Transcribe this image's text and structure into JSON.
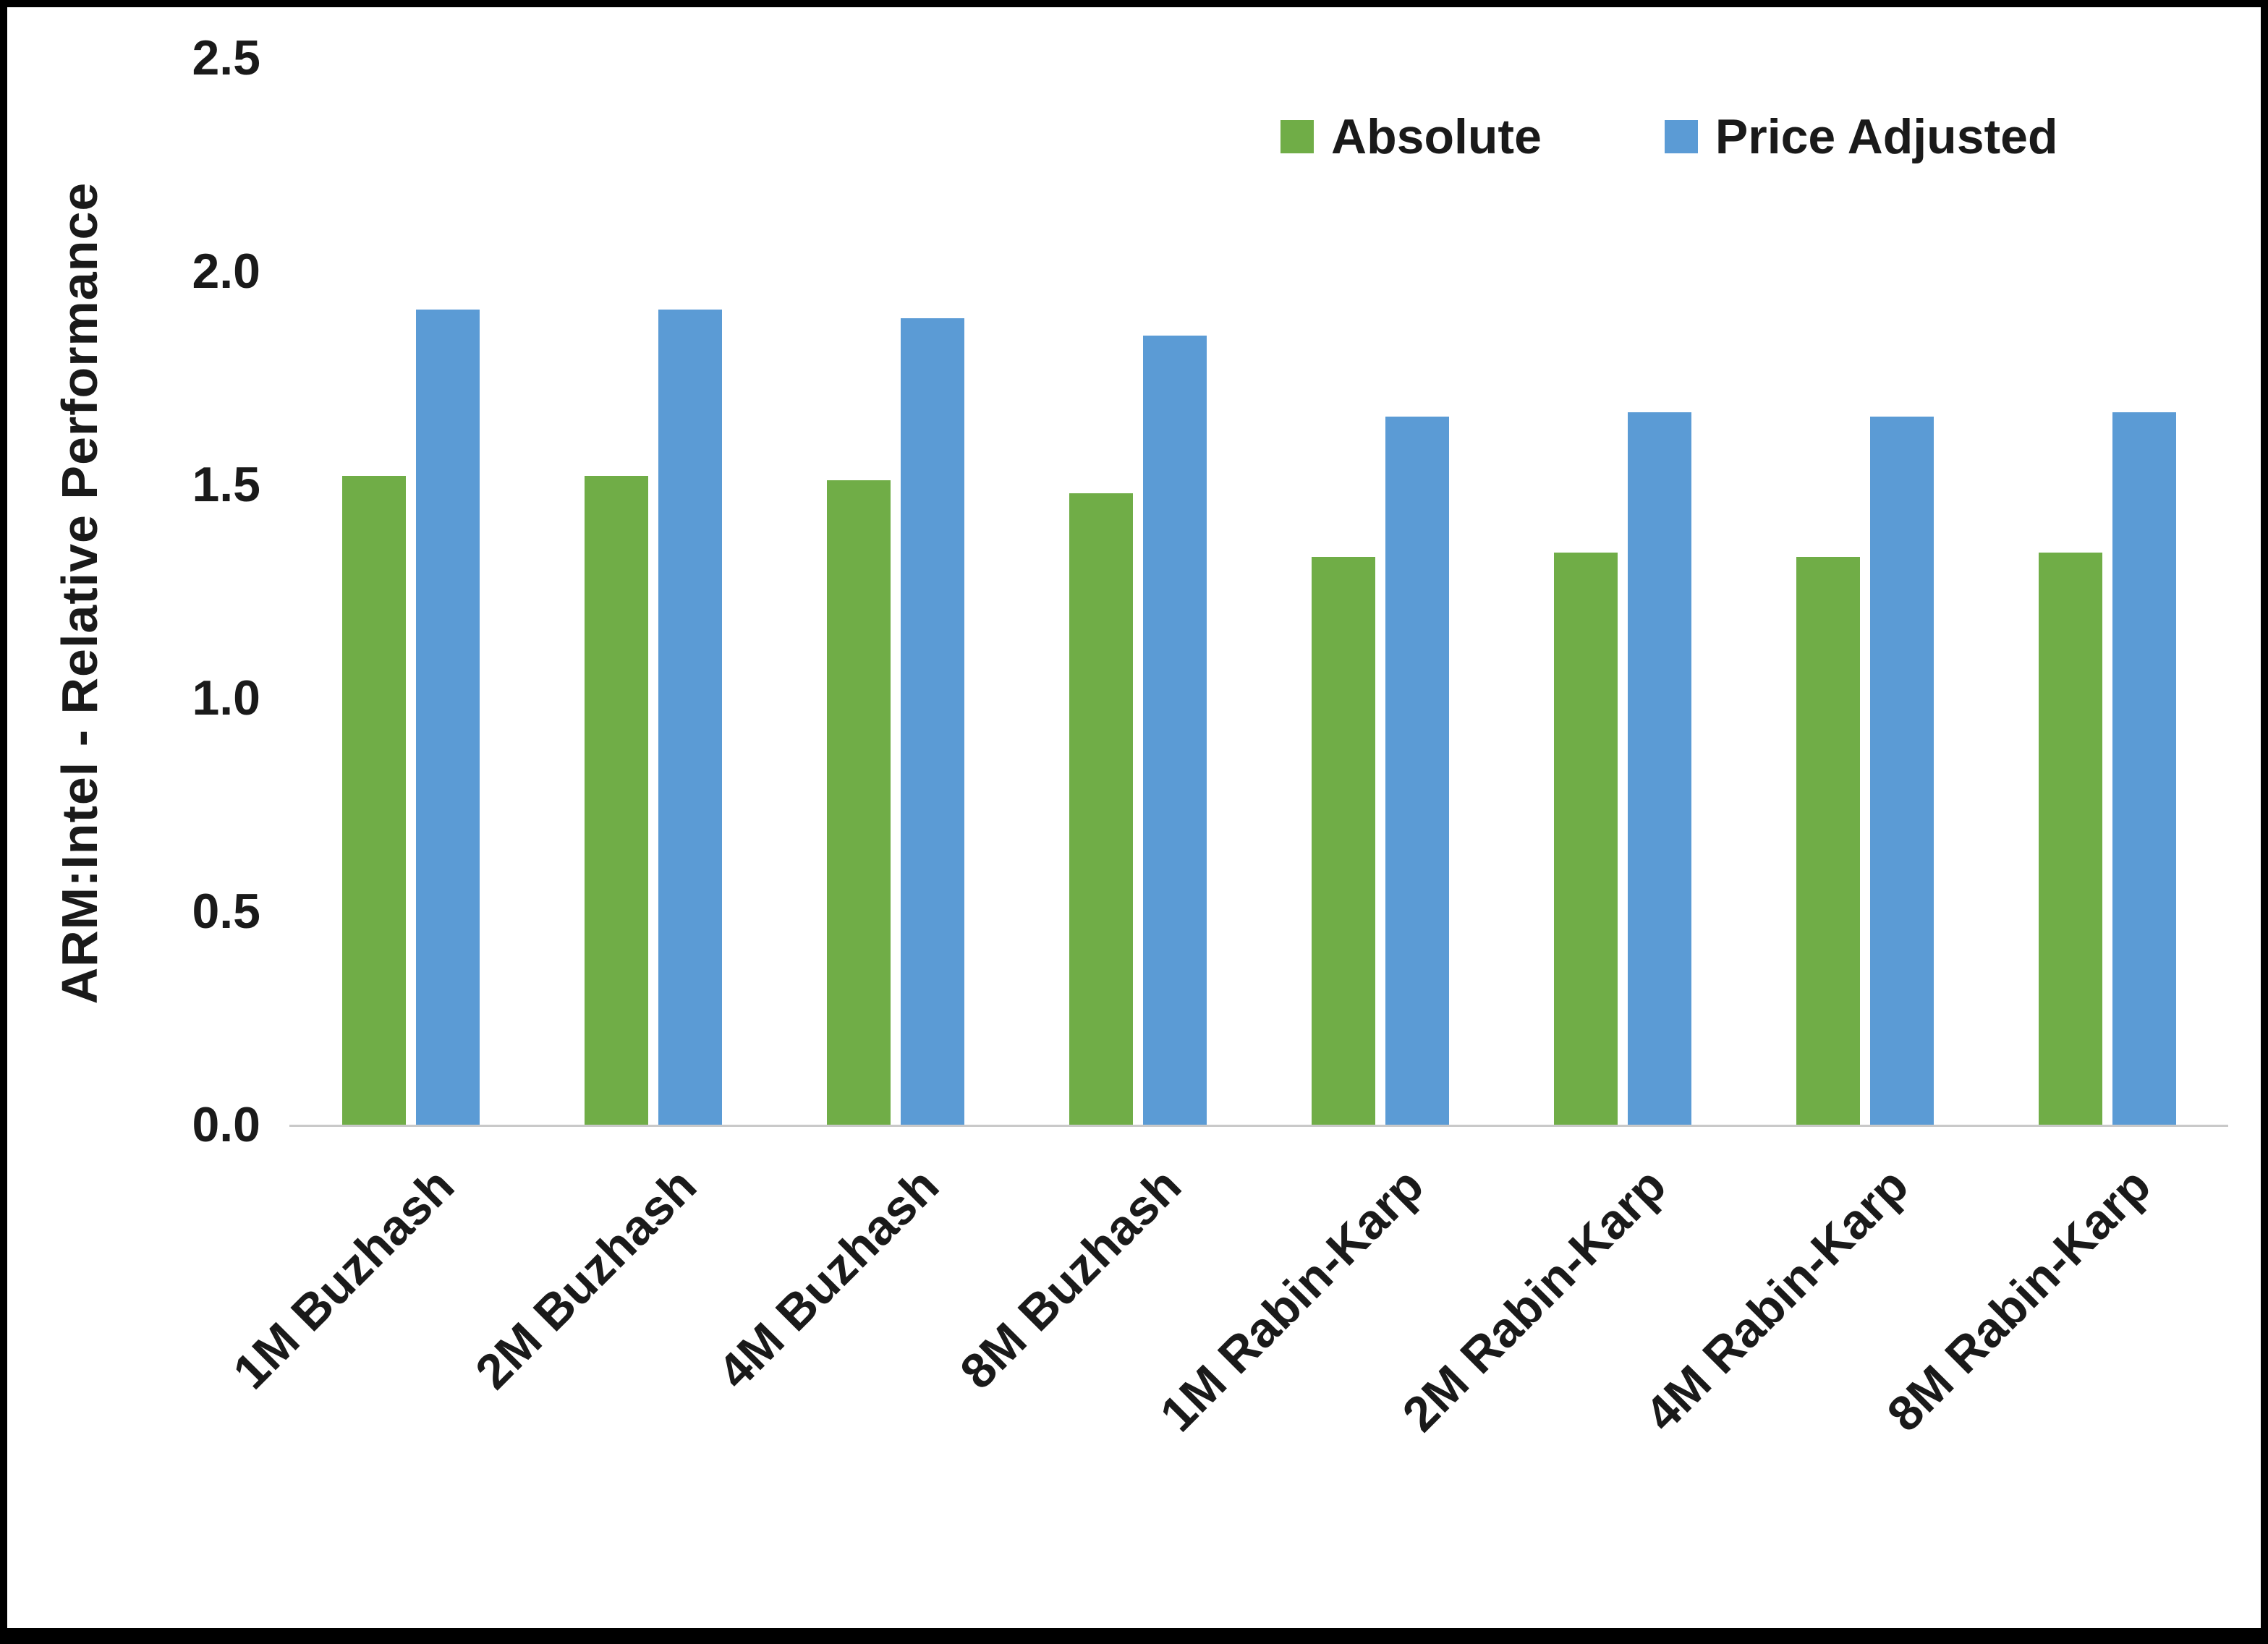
{
  "chart_data": {
    "type": "bar",
    "title": "",
    "ylabel": "ARM:Intel - Relative Performance",
    "xlabel": "",
    "ylim": [
      0,
      2.5
    ],
    "yticks": [
      0.0,
      0.5,
      1.0,
      1.5,
      2.0,
      2.5
    ],
    "ytick_labels": [
      "0.0",
      "0.5",
      "1.0",
      "1.5",
      "2.0",
      "2.5"
    ],
    "grid": false,
    "legend_position": "top-right",
    "categories": [
      "1M Buzhash",
      "2M Buzhash",
      "4M Buzhash",
      "8M Buzhash",
      "1M Rabin-Karp",
      "2M Rabin-Karp",
      "4M Rabin-Karp",
      "8M Rabin-Karp"
    ],
    "series": [
      {
        "name": "Absolute",
        "color": "#70AD47",
        "values": [
          1.52,
          1.52,
          1.51,
          1.48,
          1.33,
          1.34,
          1.33,
          1.34
        ]
      },
      {
        "name": "Price Adjusted",
        "color": "#5B9BD5",
        "values": [
          1.91,
          1.91,
          1.89,
          1.85,
          1.66,
          1.67,
          1.66,
          1.67
        ]
      }
    ]
  },
  "colors": {
    "text": "#1a1a1a",
    "axis_line": "#c9c9c9",
    "frame_border": "#000000",
    "background": "#ffffff"
  }
}
